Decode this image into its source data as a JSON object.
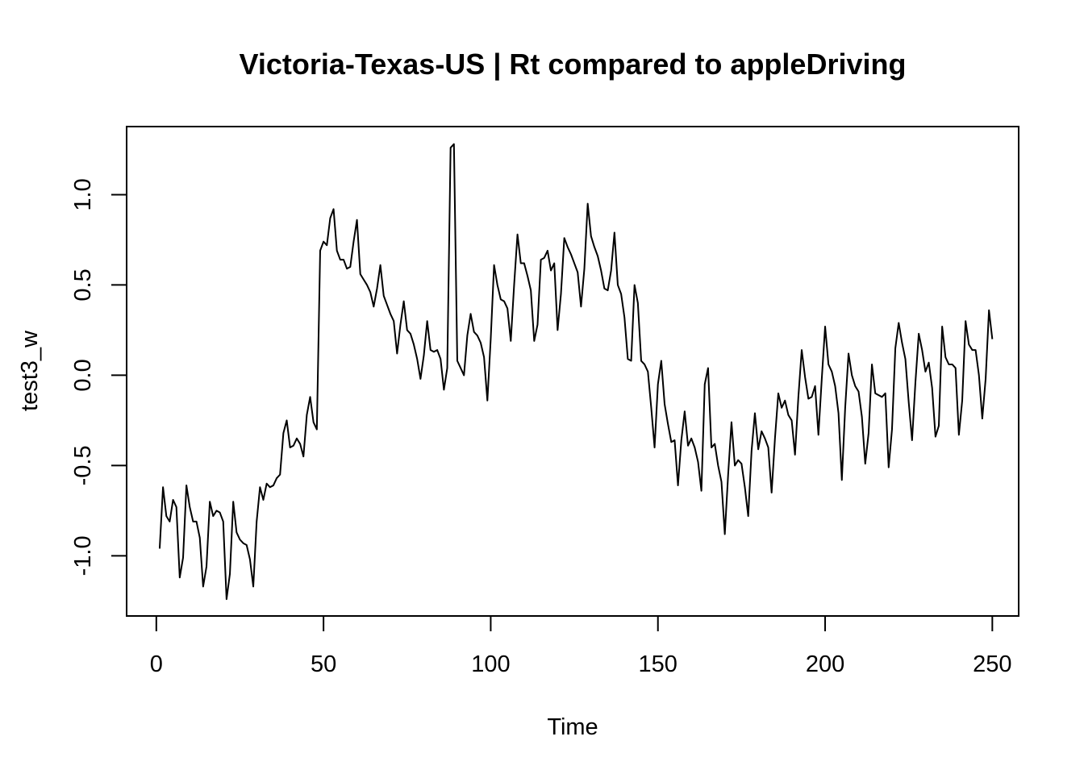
{
  "chart_data": {
    "type": "line",
    "title": "Victoria-Texas-US | Rt compared to appleDriving",
    "xlabel": "Time",
    "ylabel": "test3_w",
    "xlim": [
      -8.88,
      257.88
    ],
    "ylim": [
      -1.333,
      1.377
    ],
    "xticks": [
      0,
      50,
      100,
      150,
      200,
      250
    ],
    "xtick_labels": [
      "0",
      "50",
      "100",
      "150",
      "200",
      "250"
    ],
    "yticks": [
      -1.0,
      -0.5,
      0.0,
      0.5,
      1.0
    ],
    "ytick_labels": [
      "-1.0",
      "-0.5",
      "0.0",
      "0.5",
      "1.0"
    ],
    "grid": false,
    "line_color": "#000000",
    "x_start": 1,
    "values": [
      -0.96,
      -0.62,
      -0.78,
      -0.81,
      -0.69,
      -0.73,
      -1.12,
      -1.01,
      -0.61,
      -0.73,
      -0.81,
      -0.81,
      -0.9,
      -1.17,
      -1.06,
      -0.7,
      -0.78,
      -0.75,
      -0.76,
      -0.81,
      -1.24,
      -1.1,
      -0.7,
      -0.87,
      -0.91,
      -0.93,
      -0.94,
      -1.02,
      -1.17,
      -0.81,
      -0.62,
      -0.69,
      -0.6,
      -0.62,
      -0.61,
      -0.57,
      -0.55,
      -0.32,
      -0.25,
      -0.4,
      -0.39,
      -0.35,
      -0.38,
      -0.45,
      -0.22,
      -0.12,
      -0.26,
      -0.3,
      0.69,
      0.74,
      0.72,
      0.87,
      0.92,
      0.69,
      0.64,
      0.64,
      0.59,
      0.6,
      0.74,
      0.86,
      0.56,
      0.53,
      0.5,
      0.46,
      0.38,
      0.48,
      0.61,
      0.44,
      0.39,
      0.34,
      0.3,
      0.12,
      0.28,
      0.41,
      0.25,
      0.23,
      0.17,
      0.09,
      -0.02,
      0.11,
      0.3,
      0.14,
      0.13,
      0.14,
      0.09,
      -0.08,
      0.04,
      1.26,
      1.28,
      0.08,
      0.04,
      0.0,
      0.22,
      0.34,
      0.24,
      0.22,
      0.18,
      0.1,
      -0.14,
      0.2,
      0.61,
      0.5,
      0.42,
      0.41,
      0.37,
      0.19,
      0.5,
      0.78,
      0.62,
      0.62,
      0.55,
      0.47,
      0.19,
      0.28,
      0.64,
      0.65,
      0.69,
      0.58,
      0.62,
      0.25,
      0.45,
      0.76,
      0.71,
      0.67,
      0.62,
      0.57,
      0.38,
      0.59,
      0.95,
      0.77,
      0.71,
      0.66,
      0.58,
      0.48,
      0.47,
      0.58,
      0.79,
      0.5,
      0.45,
      0.32,
      0.09,
      0.08,
      0.5,
      0.4,
      0.08,
      0.06,
      0.02,
      -0.18,
      -0.4,
      -0.05,
      0.08,
      -0.16,
      -0.27,
      -0.37,
      -0.36,
      -0.61,
      -0.36,
      -0.2,
      -0.39,
      -0.35,
      -0.4,
      -0.48,
      -0.64,
      -0.05,
      0.04,
      -0.4,
      -0.38,
      -0.5,
      -0.59,
      -0.88,
      -0.55,
      -0.26,
      -0.5,
      -0.47,
      -0.49,
      -0.62,
      -0.78,
      -0.42,
      -0.21,
      -0.41,
      -0.31,
      -0.35,
      -0.4,
      -0.65,
      -0.35,
      -0.1,
      -0.18,
      -0.14,
      -0.22,
      -0.25,
      -0.44,
      -0.12,
      0.14,
      -0.01,
      -0.13,
      -0.12,
      -0.06,
      -0.33,
      -0.02,
      0.27,
      0.06,
      0.02,
      -0.06,
      -0.21,
      -0.58,
      -0.18,
      0.12,
      0.0,
      -0.06,
      -0.09,
      -0.23,
      -0.49,
      -0.32,
      0.06,
      -0.1,
      -0.11,
      -0.12,
      -0.1,
      -0.51,
      -0.3,
      0.15,
      0.29,
      0.18,
      0.09,
      -0.15,
      -0.36,
      -0.04,
      0.23,
      0.14,
      0.02,
      0.07,
      -0.07,
      -0.34,
      -0.28,
      0.27,
      0.1,
      0.06,
      0.06,
      0.04,
      -0.33,
      -0.14,
      0.3,
      0.17,
      0.14,
      0.14,
      0.0,
      -0.24,
      -0.02,
      0.36,
      0.2
    ]
  }
}
